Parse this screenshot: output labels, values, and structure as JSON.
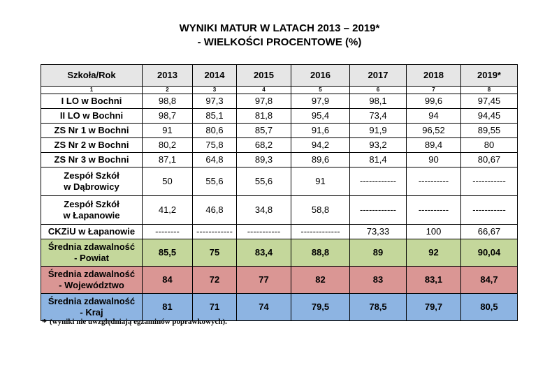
{
  "title": "WYNIKI MATUR W LATACH 2013 – 2019*",
  "subtitle": "- WIELKOŚCI PROCENTOWE (%)",
  "table": {
    "headers": [
      "Szkoła/Rok",
      "2013",
      "2014",
      "2015",
      "2016",
      "2017",
      "2018",
      "2019*"
    ],
    "indices": [
      "1",
      "2",
      "3",
      "4",
      "5",
      "6",
      "7",
      "8"
    ],
    "rows": [
      {
        "label": "I LO w Bochni",
        "values": [
          "98,8",
          "97,3",
          "97,8",
          "97,9",
          "98,1",
          "99,6",
          "97,45"
        ]
      },
      {
        "label": "II LO w Bochni",
        "values": [
          "98,7",
          "85,1",
          "81,8",
          "95,4",
          "73,4",
          "94",
          "94,45"
        ]
      },
      {
        "label": "ZS Nr 1 w Bochni",
        "values": [
          "91",
          "80,6",
          "85,7",
          "91,6",
          "91,9",
          "96,52",
          "89,55"
        ]
      },
      {
        "label": "ZS Nr 2 w Bochni",
        "values": [
          "80,2",
          "75,8",
          "68,2",
          "94,2",
          "93,2",
          "89,4",
          "80"
        ]
      },
      {
        "label": "ZS Nr 3 w Bochni",
        "values": [
          "87,1",
          "64,8",
          "89,3",
          "89,6",
          "81,4",
          "90",
          "80,67"
        ]
      },
      {
        "label_line1": "Zespół Szkół",
        "label_line2": "w Dąbrowicy",
        "values": [
          "50",
          "55,6",
          "55,6",
          "91",
          "------------",
          "----------",
          "-----------"
        ]
      },
      {
        "label_line1": "Zespół Szkół",
        "label_line2": "w Łapanowie",
        "values": [
          "41,2",
          "46,8",
          "34,8",
          "58,8",
          "------------",
          "----------",
          "-----------"
        ]
      },
      {
        "label": "CKZiU w Łapanowie",
        "values": [
          "--------",
          "------------",
          "-----------",
          "-------------",
          "73,33",
          "100",
          "66,67"
        ]
      }
    ],
    "averages": [
      {
        "label_line1": "Średnia zdawalność",
        "label_line2": "- Powiat",
        "color": "#c4d79b",
        "values": [
          "85,5",
          "75",
          "83,4",
          "88,8",
          "89",
          "92",
          "90,04"
        ]
      },
      {
        "label_line1": "Średnia zdawalność",
        "label_line2": "- Województwo",
        "color": "#da9694",
        "values": [
          "84",
          "72",
          "77",
          "82",
          "83",
          "83,1",
          "84,7"
        ]
      },
      {
        "label_line1": "Średnia zdawalność",
        "label_line2": "- Kraj",
        "color": "#8db4e2",
        "values": [
          "81",
          "71",
          "74",
          "79,5",
          "78,5",
          "79,7",
          "80,5"
        ]
      }
    ]
  },
  "footnote": {
    "star": "*",
    "text": "(wyniki nie uwzględniają egzaminów poprawkowych)."
  }
}
